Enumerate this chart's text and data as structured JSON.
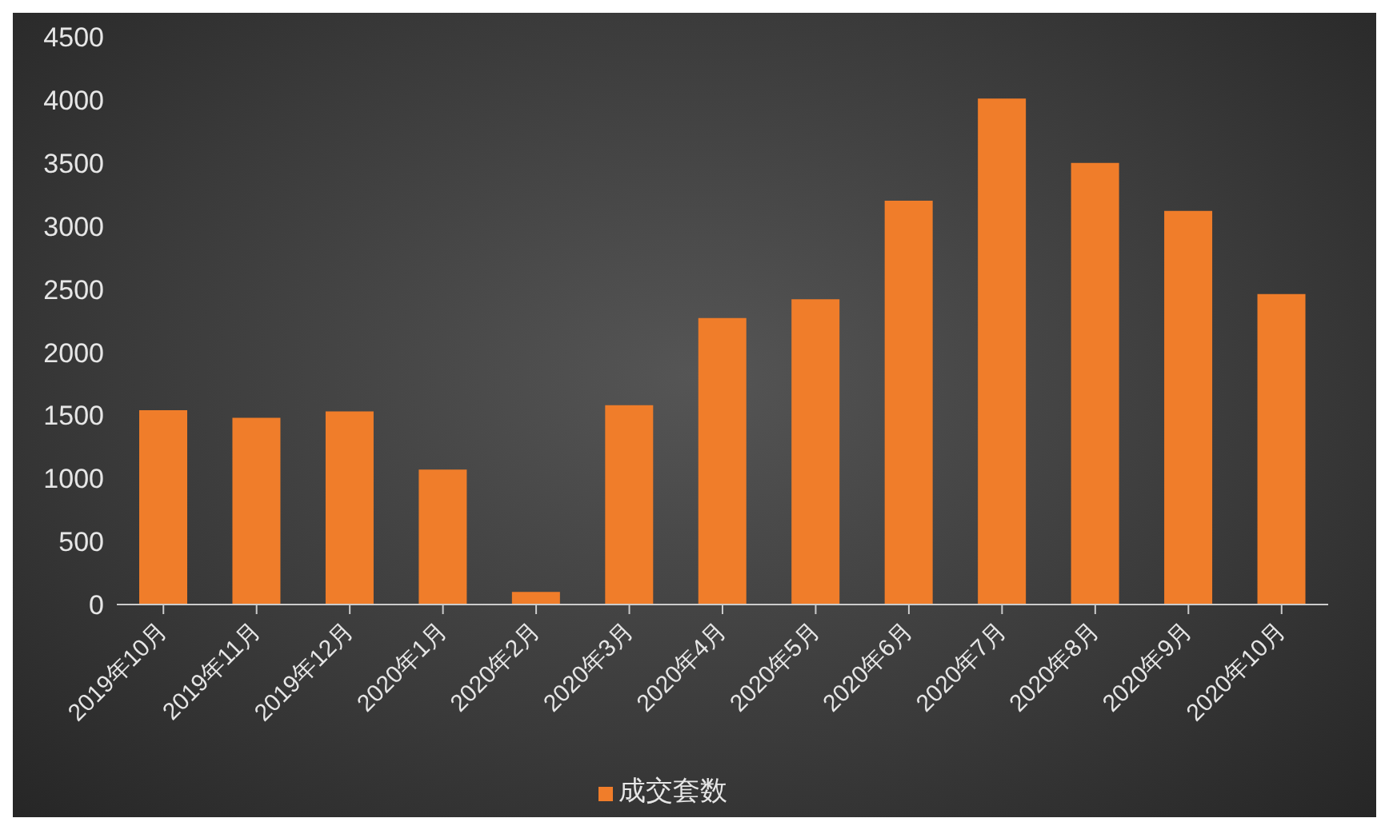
{
  "chart_data": {
    "type": "bar",
    "categories": [
      "2019年10月",
      "2019年11月",
      "2019年12月",
      "2020年1月",
      "2020年2月",
      "2020年3月",
      "2020年4月",
      "2020年5月",
      "2020年6月",
      "2020年7月",
      "2020年8月",
      "2020年9月",
      "2020年10月"
    ],
    "series": [
      {
        "name": "成交套数",
        "color": "#f07d2a",
        "values": [
          1540,
          1480,
          1530,
          1070,
          100,
          1580,
          2270,
          2420,
          3200,
          4010,
          3500,
          3120,
          2460
        ]
      }
    ],
    "ylim": [
      0,
      4500
    ],
    "yticks": [
      0,
      500,
      1000,
      1500,
      2000,
      2500,
      3000,
      3500,
      4000,
      4500
    ],
    "grid": false,
    "legend": "bottom"
  }
}
